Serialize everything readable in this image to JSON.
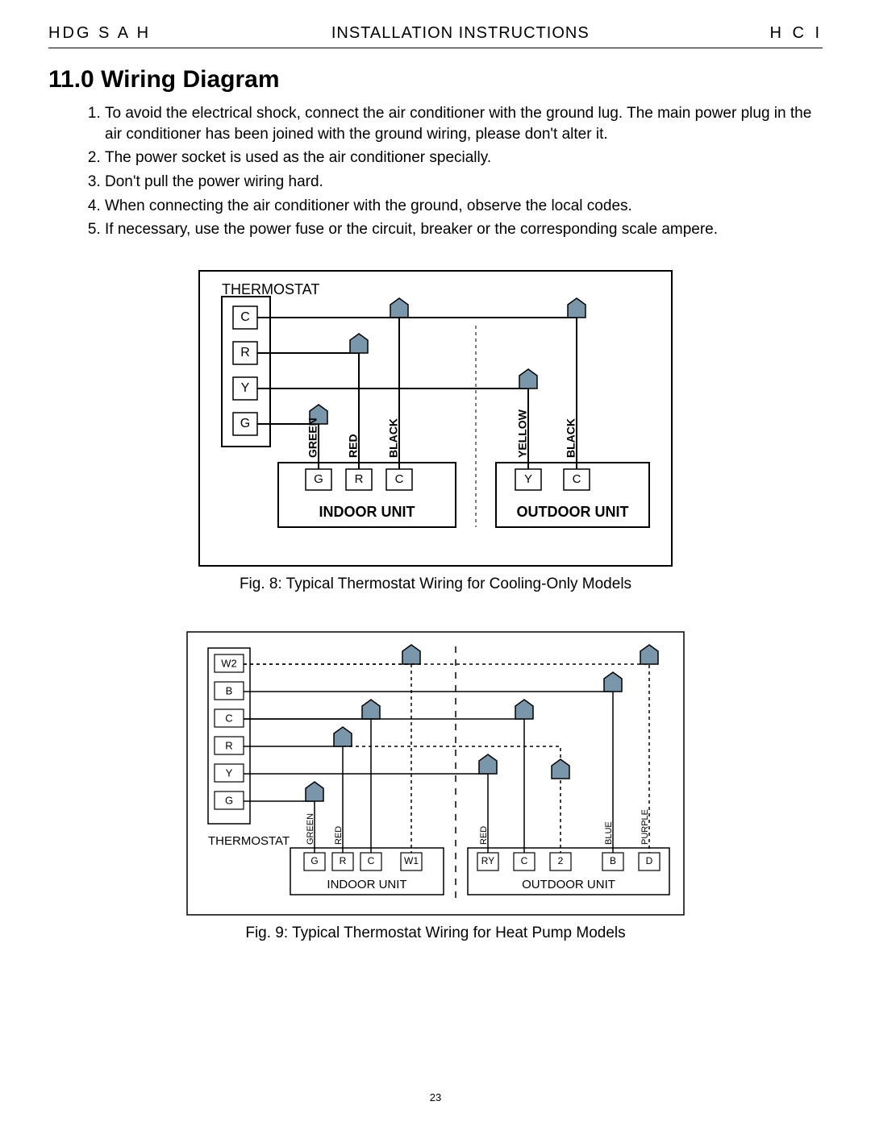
{
  "header": {
    "left": "HDG S A H",
    "center": "INSTALLATION INSTRUCTIONS",
    "right": "H C I"
  },
  "section": {
    "number": "11.0",
    "title": "Wiring Diagram"
  },
  "instructions": [
    "To avoid the electrical shock, connect the air conditioner with the ground lug. The main power plug in the air  conditioner has been joined with the ground wiring, please don't alter it.",
    "The power socket is used as the air conditioner specially.",
    "Don't pull the power wiring hard.",
    "When connecting the air conditioner with the ground, observe the local codes.",
    "If necessary, use the power fuse or the circuit, breaker or the corresponding scale ampere."
  ],
  "figure8": {
    "caption": "Fig. 8: Typical Thermostat Wiring for Cooling-Only Models",
    "outer_w": 590,
    "outer_h": 370,
    "thermostat": {
      "label": "THERMOSTAT",
      "terminals": [
        "C",
        "R",
        "Y",
        "G"
      ]
    },
    "indoor": {
      "label": "INDOOR UNIT",
      "terminals": [
        "G",
        "R",
        "C"
      ],
      "wire_colors": [
        "GREEN",
        "RED",
        "BLACK"
      ]
    },
    "outdoor": {
      "label": "OUTDOOR UNIT",
      "terminals": [
        "Y",
        "C"
      ],
      "wire_colors": [
        "YELLOW",
        "BLACK"
      ]
    },
    "arrow_fill": "#7996aa",
    "stroke": "#000000",
    "stroke_w": 2
  },
  "figure9": {
    "caption": "Fig. 9: Typical Thermostat Wiring for Heat Pump Models",
    "outer_w": 620,
    "outer_h": 355,
    "thermostat": {
      "label": "THERMOSTAT",
      "terminals": [
        "W2",
        "B",
        "C",
        "R",
        "Y",
        "G"
      ]
    },
    "indoor": {
      "label": "INDOOR UNIT",
      "terminals": [
        "G",
        "R",
        "C",
        "W1"
      ],
      "wire_colors": [
        "GREEN",
        "RED",
        "",
        ""
      ]
    },
    "outdoor": {
      "label": "OUTDOOR UNIT",
      "terminals": [
        "RY",
        "C",
        "2",
        "B",
        "D"
      ],
      "wire_colors": [
        "RED",
        "",
        "",
        "BLUE",
        "PURPLE"
      ]
    },
    "arrow_fill": "#7996aa",
    "stroke": "#000000",
    "stroke_w": 1.5
  },
  "page_number": "23"
}
